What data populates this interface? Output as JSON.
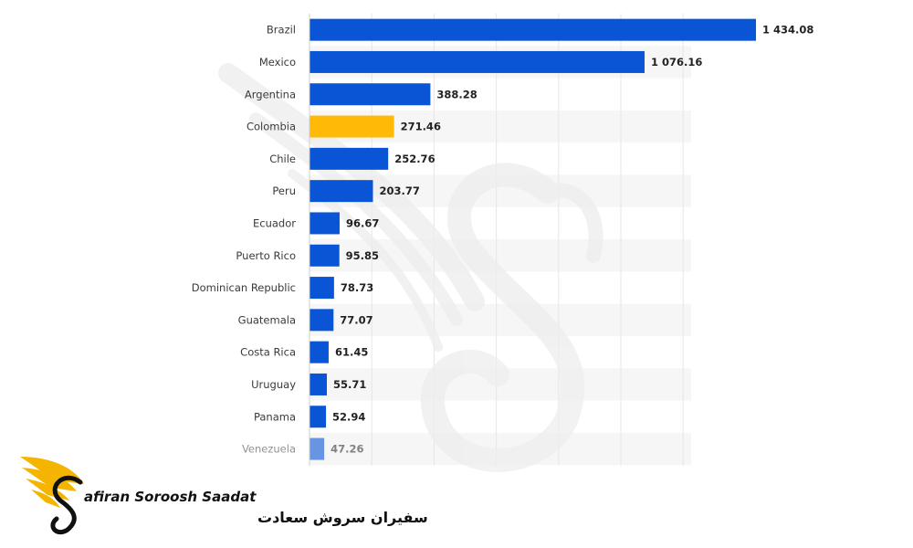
{
  "chart_data": {
    "type": "bar",
    "orientation": "horizontal",
    "title": "",
    "xlabel": "",
    "ylabel": "",
    "xlim": [
      0,
      1600
    ],
    "grid": true,
    "categories": [
      "Brazil",
      "Mexico",
      "Argentina",
      "Colombia",
      "Chile",
      "Peru",
      "Ecuador",
      "Puerto Rico",
      "Dominican Republic",
      "Guatemala",
      "Costa Rica",
      "Uruguay",
      "Panama",
      "Venezuela"
    ],
    "values": [
      1434.08,
      1076.16,
      388.28,
      271.46,
      252.76,
      203.77,
      96.67,
      95.85,
      78.73,
      77.07,
      61.45,
      55.71,
      52.94,
      47.26
    ],
    "value_labels": [
      "1 434.08",
      "1 076.16",
      "388.28",
      "271.46",
      "252.76",
      "203.77",
      "96.67",
      "95.85",
      "78.73",
      "77.07",
      "61.45",
      "55.71",
      "52.94",
      "47.26"
    ],
    "highlight": "Colombia",
    "colors": {
      "bar": "#0a55d6",
      "highlight": "#ffba08"
    }
  },
  "brand": {
    "name_en": "afiran Soroosh Saadat",
    "name_fa": "سفیران سروش سعادت",
    "colors": {
      "gold": "#f4b400",
      "ink": "#111111"
    }
  }
}
